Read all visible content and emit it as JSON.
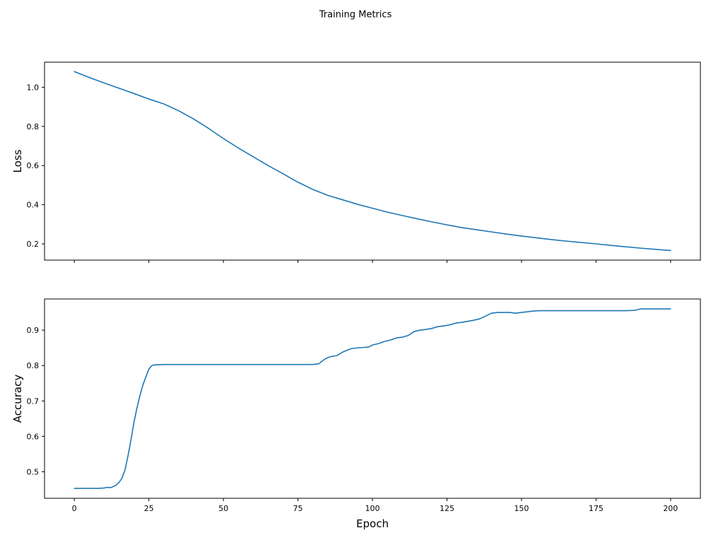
{
  "figure": {
    "title": "Training Metrics"
  },
  "chart_data": [
    {
      "type": "line",
      "title": "",
      "xlabel": "",
      "ylabel": "Loss",
      "legend": null,
      "grid": false,
      "xlim": [
        -10,
        210
      ],
      "ylim": [
        0.117,
        1.128
      ],
      "xticks": [
        0,
        25,
        50,
        75,
        100,
        125,
        150,
        175,
        200
      ],
      "xticklabels": null,
      "yticks": [
        0.2,
        0.4,
        0.6,
        0.8,
        1.0
      ],
      "yticklabels": [
        "0.2",
        "0.4",
        "0.6",
        "0.8",
        "1.0"
      ],
      "line_color": "#1f77b4",
      "series": [
        {
          "name": "loss",
          "x": [
            0,
            5,
            10,
            15,
            20,
            25,
            30,
            35,
            40,
            45,
            50,
            55,
            60,
            65,
            70,
            75,
            80,
            85,
            90,
            95,
            100,
            105,
            110,
            115,
            120,
            125,
            130,
            135,
            140,
            145,
            150,
            155,
            160,
            165,
            170,
            175,
            180,
            185,
            190,
            195,
            200
          ],
          "y": [
            1.08,
            1.05,
            1.022,
            0.995,
            0.968,
            0.94,
            0.915,
            0.88,
            0.838,
            0.79,
            0.738,
            0.69,
            0.645,
            0.6,
            0.558,
            0.515,
            0.478,
            0.448,
            0.425,
            0.402,
            0.382,
            0.362,
            0.345,
            0.328,
            0.312,
            0.297,
            0.283,
            0.272,
            0.261,
            0.25,
            0.24,
            0.231,
            0.222,
            0.214,
            0.207,
            0.2,
            0.192,
            0.185,
            0.178,
            0.172,
            0.166
          ]
        }
      ]
    },
    {
      "type": "line",
      "title": "",
      "xlabel": "Epoch",
      "ylabel": "Accuracy",
      "legend": null,
      "grid": false,
      "xlim": [
        -10,
        210
      ],
      "ylim": [
        0.425,
        0.988
      ],
      "xticks": [
        0,
        25,
        50,
        75,
        100,
        125,
        150,
        175,
        200
      ],
      "xticklabels": [
        "0",
        "25",
        "50",
        "75",
        "100",
        "125",
        "150",
        "175",
        "200"
      ],
      "yticks": [
        0.5,
        0.6,
        0.7,
        0.8,
        0.9
      ],
      "yticklabels": [
        "0.5",
        "0.6",
        "0.7",
        "0.8",
        "0.9"
      ],
      "line_color": "#1f77b4",
      "series": [
        {
          "name": "accuracy",
          "x": [
            0,
            2,
            4,
            6,
            8,
            10,
            11,
            12,
            13,
            14,
            15,
            16,
            17,
            18,
            19,
            20,
            21,
            22,
            23,
            24,
            25,
            26,
            27,
            28,
            30,
            35,
            40,
            45,
            50,
            55,
            60,
            65,
            70,
            75,
            80,
            82,
            84,
            85,
            86,
            88,
            90,
            92,
            93,
            95,
            97,
            99,
            100,
            102,
            104,
            106,
            108,
            110,
            112,
            114,
            115,
            116,
            118,
            120,
            122,
            124,
            126,
            128,
            130,
            132,
            134,
            136,
            138,
            140,
            142,
            144,
            146,
            148,
            150,
            152,
            154,
            156,
            158,
            160,
            165,
            170,
            175,
            180,
            185,
            188,
            190,
            195,
            200
          ],
          "y": [
            0.453,
            0.453,
            0.453,
            0.453,
            0.453,
            0.454,
            0.456,
            0.455,
            0.458,
            0.462,
            0.47,
            0.482,
            0.505,
            0.545,
            0.59,
            0.64,
            0.68,
            0.715,
            0.745,
            0.768,
            0.79,
            0.8,
            0.802,
            0.802,
            0.803,
            0.803,
            0.803,
            0.803,
            0.803,
            0.803,
            0.803,
            0.803,
            0.803,
            0.803,
            0.803,
            0.805,
            0.818,
            0.822,
            0.825,
            0.828,
            0.838,
            0.845,
            0.848,
            0.85,
            0.851,
            0.853,
            0.858,
            0.862,
            0.868,
            0.872,
            0.878,
            0.88,
            0.885,
            0.896,
            0.898,
            0.9,
            0.902,
            0.905,
            0.91,
            0.912,
            0.915,
            0.92,
            0.922,
            0.925,
            0.928,
            0.932,
            0.94,
            0.948,
            0.95,
            0.95,
            0.95,
            0.948,
            0.95,
            0.952,
            0.954,
            0.955,
            0.955,
            0.955,
            0.955,
            0.955,
            0.955,
            0.955,
            0.955,
            0.956,
            0.96,
            0.96,
            0.96
          ]
        }
      ]
    }
  ]
}
